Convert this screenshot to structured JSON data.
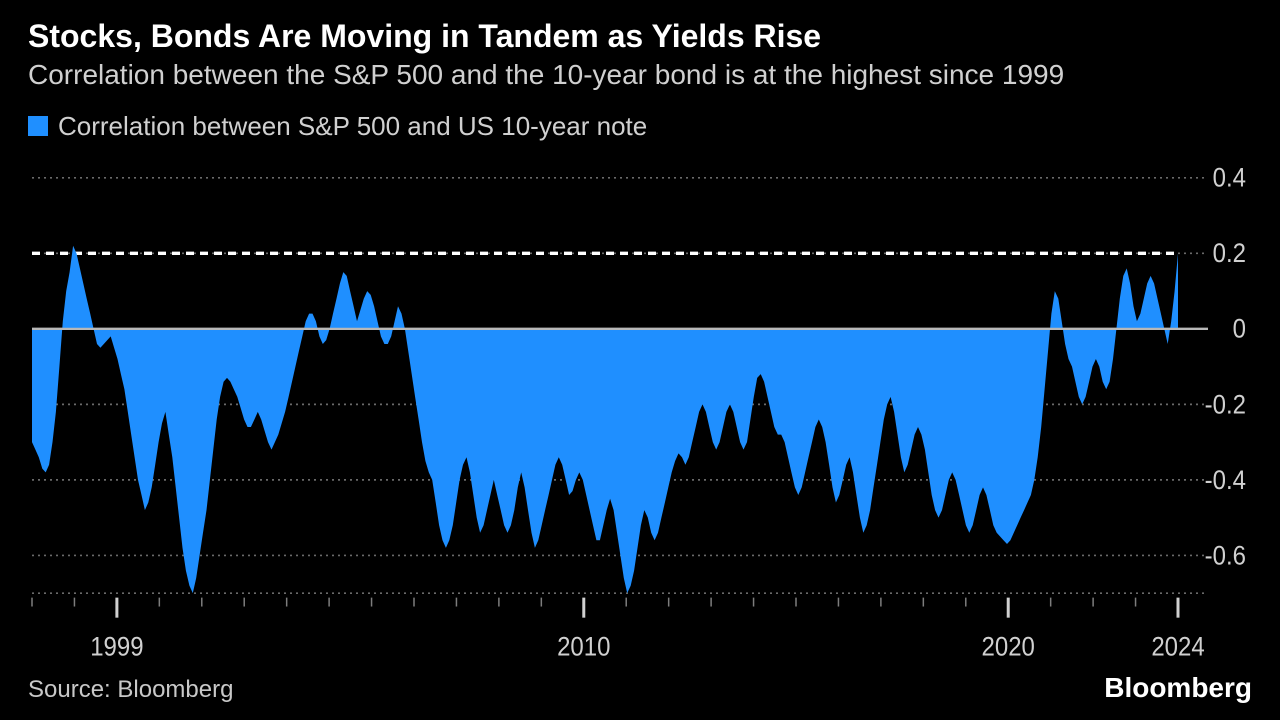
{
  "title": "Stocks, Bonds Are Moving in Tandem as Yields Rise",
  "subtitle": "Correlation between the S&P 500 and the 10-year bond is at the highest since 1999",
  "legend": {
    "swatch_color": "#1f8fff",
    "label": "Correlation between S&P 500 and US 10-year note"
  },
  "source": "Source: Bloomberg",
  "brand": "Bloomberg",
  "chart": {
    "type": "area",
    "background_color": "#000000",
    "series_color": "#1f8fff",
    "grid_color": "#6a6a6a",
    "zero_line_color": "#b8b8b8",
    "reference_line_color": "#ffffff",
    "tick_label_color": "#d0d0d0",
    "tick_fontsize": 24,
    "title_fontsize": 32,
    "subtitle_fontsize": 28,
    "legend_fontsize": 26,
    "x": {
      "start_year": 1997,
      "end_year": 2024,
      "major_ticks": [
        1999,
        2010,
        2020,
        2024
      ],
      "minor_tick_step": 1
    },
    "y": {
      "min": -0.7,
      "max": 0.45,
      "ticks": [
        -0.6,
        -0.4,
        -0.2,
        0,
        0.2,
        0.4
      ],
      "tick_labels": [
        "-0.6",
        "-0.4",
        "-0.2",
        "0",
        "0.2",
        "0.4"
      ],
      "reference_value": 0.2
    },
    "values": [
      -0.3,
      -0.32,
      -0.34,
      -0.37,
      -0.38,
      -0.36,
      -0.3,
      -0.22,
      -0.1,
      0.02,
      0.1,
      0.15,
      0.22,
      0.2,
      0.16,
      0.12,
      0.08,
      0.04,
      0.0,
      -0.04,
      -0.05,
      -0.04,
      -0.03,
      -0.02,
      -0.05,
      -0.08,
      -0.12,
      -0.16,
      -0.22,
      -0.28,
      -0.34,
      -0.4,
      -0.44,
      -0.48,
      -0.46,
      -0.42,
      -0.36,
      -0.3,
      -0.25,
      -0.22,
      -0.28,
      -0.34,
      -0.42,
      -0.5,
      -0.58,
      -0.64,
      -0.68,
      -0.7,
      -0.66,
      -0.6,
      -0.54,
      -0.48,
      -0.4,
      -0.32,
      -0.24,
      -0.18,
      -0.14,
      -0.13,
      -0.14,
      -0.16,
      -0.18,
      -0.21,
      -0.24,
      -0.26,
      -0.26,
      -0.24,
      -0.22,
      -0.24,
      -0.27,
      -0.3,
      -0.32,
      -0.3,
      -0.28,
      -0.25,
      -0.22,
      -0.18,
      -0.14,
      -0.1,
      -0.06,
      -0.02,
      0.02,
      0.04,
      0.04,
      0.02,
      -0.02,
      -0.04,
      -0.03,
      0.0,
      0.04,
      0.08,
      0.12,
      0.15,
      0.14,
      0.1,
      0.06,
      0.02,
      0.05,
      0.08,
      0.1,
      0.09,
      0.06,
      0.02,
      -0.02,
      -0.04,
      -0.04,
      -0.02,
      0.02,
      0.06,
      0.04,
      0.0,
      -0.06,
      -0.12,
      -0.18,
      -0.24,
      -0.3,
      -0.35,
      -0.38,
      -0.4,
      -0.46,
      -0.52,
      -0.56,
      -0.58,
      -0.56,
      -0.52,
      -0.46,
      -0.4,
      -0.36,
      -0.34,
      -0.38,
      -0.44,
      -0.5,
      -0.54,
      -0.52,
      -0.48,
      -0.44,
      -0.4,
      -0.44,
      -0.48,
      -0.52,
      -0.54,
      -0.52,
      -0.48,
      -0.42,
      -0.38,
      -0.42,
      -0.48,
      -0.54,
      -0.58,
      -0.56,
      -0.52,
      -0.48,
      -0.44,
      -0.4,
      -0.36,
      -0.34,
      -0.36,
      -0.4,
      -0.44,
      -0.43,
      -0.4,
      -0.38,
      -0.4,
      -0.44,
      -0.48,
      -0.52,
      -0.56,
      -0.56,
      -0.52,
      -0.48,
      -0.45,
      -0.48,
      -0.54,
      -0.6,
      -0.66,
      -0.7,
      -0.68,
      -0.64,
      -0.58,
      -0.52,
      -0.48,
      -0.5,
      -0.54,
      -0.56,
      -0.54,
      -0.5,
      -0.46,
      -0.42,
      -0.38,
      -0.35,
      -0.33,
      -0.34,
      -0.36,
      -0.34,
      -0.3,
      -0.26,
      -0.22,
      -0.2,
      -0.22,
      -0.26,
      -0.3,
      -0.32,
      -0.3,
      -0.26,
      -0.22,
      -0.2,
      -0.22,
      -0.26,
      -0.3,
      -0.32,
      -0.3,
      -0.24,
      -0.18,
      -0.13,
      -0.12,
      -0.14,
      -0.18,
      -0.22,
      -0.26,
      -0.28,
      -0.28,
      -0.3,
      -0.34,
      -0.38,
      -0.42,
      -0.44,
      -0.42,
      -0.38,
      -0.34,
      -0.3,
      -0.26,
      -0.24,
      -0.26,
      -0.3,
      -0.36,
      -0.42,
      -0.46,
      -0.44,
      -0.4,
      -0.36,
      -0.34,
      -0.38,
      -0.44,
      -0.5,
      -0.54,
      -0.52,
      -0.48,
      -0.42,
      -0.36,
      -0.3,
      -0.24,
      -0.2,
      -0.18,
      -0.22,
      -0.28,
      -0.34,
      -0.38,
      -0.36,
      -0.32,
      -0.28,
      -0.26,
      -0.28,
      -0.32,
      -0.38,
      -0.44,
      -0.48,
      -0.5,
      -0.48,
      -0.44,
      -0.4,
      -0.38,
      -0.4,
      -0.44,
      -0.48,
      -0.52,
      -0.54,
      -0.52,
      -0.48,
      -0.44,
      -0.42,
      -0.44,
      -0.48,
      -0.52,
      -0.54,
      -0.55,
      -0.56,
      -0.57,
      -0.56,
      -0.54,
      -0.52,
      -0.5,
      -0.48,
      -0.46,
      -0.44,
      -0.4,
      -0.34,
      -0.26,
      -0.16,
      -0.06,
      0.04,
      0.1,
      0.08,
      0.02,
      -0.04,
      -0.08,
      -0.1,
      -0.14,
      -0.18,
      -0.2,
      -0.18,
      -0.14,
      -0.1,
      -0.08,
      -0.1,
      -0.14,
      -0.16,
      -0.14,
      -0.08,
      0.0,
      0.08,
      0.14,
      0.16,
      0.12,
      0.06,
      0.02,
      0.04,
      0.08,
      0.12,
      0.14,
      0.12,
      0.08,
      0.04,
      0.0,
      -0.04,
      0.02,
      0.1,
      0.2
    ]
  }
}
